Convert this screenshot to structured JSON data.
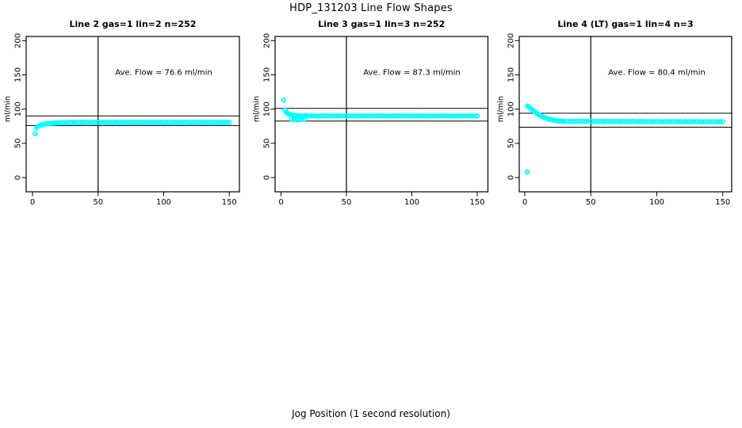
{
  "figure": {
    "title": "HDP_131203  Line Flow Shapes",
    "xlabel": "Jog Position (1 second resolution)"
  },
  "chart_data": [
    {
      "type": "scatter",
      "title": "Line 2 gas=1 lin=2 n=252",
      "annotation": "Ave. Flow =  76.6  ml/min",
      "ave_flow_ml_min": 76.6,
      "n": 252,
      "ylabel": "ml/min",
      "xticks": [
        0,
        50,
        100,
        150
      ],
      "yticks": [
        0,
        50,
        100,
        150,
        200
      ],
      "xlim": [
        0,
        150
      ],
      "ylim": [
        0,
        200
      ],
      "vline_x": 50,
      "hlines": [
        90,
        76
      ],
      "marker_color": "#00FFFF",
      "points": [
        [
          2,
          64
        ],
        [
          3,
          72.5
        ],
        [
          4,
          74.5
        ],
        [
          5,
          75.6
        ],
        [
          6,
          76.4
        ],
        [
          7,
          77
        ],
        [
          8,
          77.5
        ],
        [
          9,
          77.9
        ],
        [
          10,
          78.2
        ],
        [
          11,
          78.5
        ],
        [
          12,
          78.8
        ],
        [
          13,
          79
        ],
        [
          14,
          79.2
        ],
        [
          15,
          79.4
        ],
        [
          16,
          79.5
        ],
        [
          17,
          79.7
        ],
        [
          18,
          79.8
        ],
        [
          19,
          79.9
        ],
        [
          20,
          80
        ],
        [
          22,
          80.1
        ],
        [
          24,
          80.2
        ],
        [
          26,
          80.3
        ],
        [
          28,
          80.4
        ],
        [
          30,
          80.5
        ],
        [
          32,
          80.8
        ],
        [
          34,
          80.4
        ],
        [
          36,
          80.7
        ],
        [
          38,
          80.5
        ],
        [
          40,
          80.9
        ],
        [
          42,
          80.6
        ],
        [
          44,
          80.4
        ],
        [
          46,
          80.7
        ],
        [
          48,
          80.5
        ],
        [
          50,
          80.8
        ],
        [
          52,
          80.5
        ],
        [
          54,
          80.9
        ],
        [
          56,
          80.6
        ],
        [
          58,
          80.4
        ],
        [
          60,
          80.7
        ],
        [
          62,
          80.5
        ],
        [
          64,
          80.8
        ],
        [
          66,
          80.4
        ],
        [
          68,
          80.6
        ],
        [
          70,
          80.8
        ],
        [
          72,
          80.5
        ],
        [
          74,
          80.7
        ],
        [
          76,
          80.4
        ],
        [
          78,
          80.8
        ],
        [
          80,
          80.6
        ],
        [
          82,
          80.5
        ],
        [
          84,
          80.9
        ],
        [
          86,
          80.6
        ],
        [
          88,
          80.4
        ],
        [
          90,
          80.7
        ],
        [
          92,
          80.5
        ],
        [
          94,
          80.8
        ],
        [
          96,
          80.5
        ],
        [
          98,
          80.7
        ],
        [
          100,
          80.4
        ],
        [
          102,
          80.8
        ],
        [
          104,
          80.6
        ],
        [
          106,
          80.5
        ],
        [
          108,
          80.8
        ],
        [
          110,
          80.4
        ],
        [
          112,
          80.7
        ],
        [
          114,
          80.5
        ],
        [
          116,
          80.9
        ],
        [
          118,
          80.6
        ],
        [
          120,
          80.4
        ],
        [
          122,
          80.7
        ],
        [
          124,
          80.5
        ],
        [
          126,
          80.8
        ],
        [
          128,
          80.5
        ],
        [
          130,
          80.7
        ],
        [
          132,
          80.4
        ],
        [
          134,
          80.8
        ],
        [
          136,
          80.6
        ],
        [
          138,
          80.5
        ],
        [
          140,
          80.8
        ],
        [
          142,
          80.4
        ],
        [
          144,
          80.7
        ],
        [
          146,
          80.5
        ],
        [
          148,
          80.8
        ],
        [
          150,
          80.6
        ]
      ]
    },
    {
      "type": "scatter",
      "title": "Line 3 gas=1 lin=3 n=252",
      "annotation": "Ave. Flow =  87.3  ml/min",
      "ave_flow_ml_min": 87.3,
      "n": 252,
      "ylabel": "ml/min",
      "xticks": [
        0,
        50,
        100,
        150
      ],
      "yticks": [
        0,
        50,
        100,
        150,
        200
      ],
      "xlim": [
        0,
        150
      ],
      "ylim": [
        0,
        200
      ],
      "vline_x": 50,
      "hlines": [
        101,
        82.5
      ],
      "marker_color": "#00FFFF",
      "points": [
        [
          2,
          113
        ],
        [
          3,
          98.5
        ],
        [
          4,
          95.5
        ],
        [
          5,
          93.8
        ],
        [
          6,
          92.8
        ],
        [
          7,
          92.1
        ],
        [
          8,
          91.6
        ],
        [
          9,
          91.2
        ],
        [
          10,
          91
        ],
        [
          11,
          90.8
        ],
        [
          12,
          90.6
        ],
        [
          13,
          90.5
        ],
        [
          14,
          90.4
        ],
        [
          15,
          90.3
        ],
        [
          16,
          90.3
        ],
        [
          17,
          90.2
        ],
        [
          18,
          90.2
        ],
        [
          19,
          90.1
        ],
        [
          20,
          90.1
        ],
        [
          8,
          85.3
        ],
        [
          10,
          84.7
        ],
        [
          12,
          84.2
        ],
        [
          14,
          84.4
        ],
        [
          16,
          84.9
        ],
        [
          18,
          85.3
        ],
        [
          22,
          90
        ],
        [
          24,
          90.3
        ],
        [
          26,
          89.9
        ],
        [
          28,
          90.2
        ],
        [
          30,
          90
        ],
        [
          32,
          90.4
        ],
        [
          34,
          90.1
        ],
        [
          36,
          89.9
        ],
        [
          38,
          90.2
        ],
        [
          40,
          90
        ],
        [
          42,
          90.3
        ],
        [
          44,
          90
        ],
        [
          46,
          90.4
        ],
        [
          48,
          90.1
        ],
        [
          50,
          89.9
        ],
        [
          52,
          90.2
        ],
        [
          54,
          90
        ],
        [
          56,
          90.3
        ],
        [
          58,
          89.9
        ],
        [
          60,
          90.1
        ],
        [
          62,
          90.3
        ],
        [
          64,
          90
        ],
        [
          66,
          90.2
        ],
        [
          68,
          89.9
        ],
        [
          70,
          90.3
        ],
        [
          72,
          90.1
        ],
        [
          74,
          90
        ],
        [
          76,
          90.4
        ],
        [
          78,
          90.1
        ],
        [
          80,
          89.9
        ],
        [
          82,
          90.2
        ],
        [
          84,
          90
        ],
        [
          86,
          90.3
        ],
        [
          88,
          90
        ],
        [
          90,
          90.2
        ],
        [
          92,
          89.9
        ],
        [
          94,
          90.3
        ],
        [
          96,
          90.1
        ],
        [
          98,
          90
        ],
        [
          100,
          90.3
        ],
        [
          102,
          89.9
        ],
        [
          104,
          90.2
        ],
        [
          106,
          90
        ],
        [
          108,
          90.4
        ],
        [
          110,
          90.1
        ],
        [
          112,
          89.9
        ],
        [
          114,
          90.2
        ],
        [
          116,
          90
        ],
        [
          118,
          90.3
        ],
        [
          120,
          90
        ],
        [
          122,
          90.2
        ],
        [
          124,
          89.9
        ],
        [
          126,
          90.3
        ],
        [
          128,
          90.1
        ],
        [
          130,
          90
        ],
        [
          132,
          90.3
        ],
        [
          134,
          89.9
        ],
        [
          136,
          90.2
        ],
        [
          138,
          90
        ],
        [
          140,
          90.3
        ],
        [
          142,
          90.1
        ],
        [
          144,
          89.9
        ],
        [
          146,
          90.2
        ],
        [
          148,
          90
        ],
        [
          150,
          90.1
        ]
      ]
    },
    {
      "type": "scatter",
      "title": "Line 4 (LT) gas=1 lin=4 n=3",
      "annotation": "Ave. Flow =  80.4  ml/min",
      "ave_flow_ml_min": 80.4,
      "n": 3,
      "ylabel": "ml/min",
      "xticks": [
        0,
        50,
        100,
        150
      ],
      "yticks": [
        0,
        50,
        100,
        150,
        200
      ],
      "xlim": [
        0,
        150
      ],
      "ylim": [
        0,
        200
      ],
      "vline_x": 50,
      "hlines": [
        94,
        73.5
      ],
      "marker_color": "#00FFFF",
      "points": [
        [
          2,
          8
        ],
        [
          2,
          104.5
        ],
        [
          3,
          103.2
        ],
        [
          4,
          101.6
        ],
        [
          5,
          100
        ],
        [
          6,
          98.4
        ],
        [
          7,
          96.9
        ],
        [
          8,
          95.4
        ],
        [
          9,
          94
        ],
        [
          10,
          92.7
        ],
        [
          11,
          91.5
        ],
        [
          12,
          90.4
        ],
        [
          13,
          89.4
        ],
        [
          14,
          88.5
        ],
        [
          15,
          87.7
        ],
        [
          16,
          86.9
        ],
        [
          17,
          86.2
        ],
        [
          18,
          85.6
        ],
        [
          19,
          85
        ],
        [
          20,
          84.5
        ],
        [
          21,
          84.1
        ],
        [
          22,
          83.7
        ],
        [
          23,
          83.4
        ],
        [
          24,
          83.1
        ],
        [
          25,
          82.9
        ],
        [
          26,
          82.7
        ],
        [
          27,
          82.5
        ],
        [
          28,
          82.4
        ],
        [
          29,
          82.3
        ],
        [
          30,
          82.2
        ],
        [
          32,
          82.2
        ],
        [
          34,
          82
        ],
        [
          36,
          82.3
        ],
        [
          38,
          81.9
        ],
        [
          40,
          82.2
        ],
        [
          42,
          82
        ],
        [
          44,
          82.3
        ],
        [
          46,
          81.9
        ],
        [
          48,
          82.1
        ],
        [
          50,
          82.2
        ],
        [
          52,
          81.9
        ],
        [
          54,
          82.1
        ],
        [
          56,
          81.8
        ],
        [
          58,
          82.1
        ],
        [
          60,
          81.9
        ],
        [
          62,
          82.2
        ],
        [
          64,
          81.8
        ],
        [
          66,
          82
        ],
        [
          68,
          81.9
        ],
        [
          70,
          82.1
        ],
        [
          72,
          81.8
        ],
        [
          74,
          82
        ],
        [
          76,
          81.7
        ],
        [
          78,
          82
        ],
        [
          80,
          81.8
        ],
        [
          82,
          82.1
        ],
        [
          84,
          81.7
        ],
        [
          86,
          81.9
        ],
        [
          88,
          81.8
        ],
        [
          90,
          82
        ],
        [
          92,
          81.7
        ],
        [
          94,
          81.9
        ],
        [
          96,
          81.6
        ],
        [
          98,
          81.9
        ],
        [
          100,
          81.7
        ],
        [
          102,
          82
        ],
        [
          104,
          81.6
        ],
        [
          106,
          81.8
        ],
        [
          108,
          81.7
        ],
        [
          110,
          81.9
        ],
        [
          112,
          81.6
        ],
        [
          114,
          81.8
        ],
        [
          116,
          81.5
        ],
        [
          118,
          81.8
        ],
        [
          120,
          81.6
        ],
        [
          122,
          81.9
        ],
        [
          124,
          81.5
        ],
        [
          126,
          81.7
        ],
        [
          128,
          81.6
        ],
        [
          130,
          81.8
        ],
        [
          132,
          81.5
        ],
        [
          134,
          81.7
        ],
        [
          136,
          81.4
        ],
        [
          138,
          81.7
        ],
        [
          140,
          81.5
        ],
        [
          142,
          81.8
        ],
        [
          144,
          81.4
        ],
        [
          146,
          81.6
        ],
        [
          148,
          81.5
        ],
        [
          150,
          81.6
        ]
      ]
    }
  ]
}
